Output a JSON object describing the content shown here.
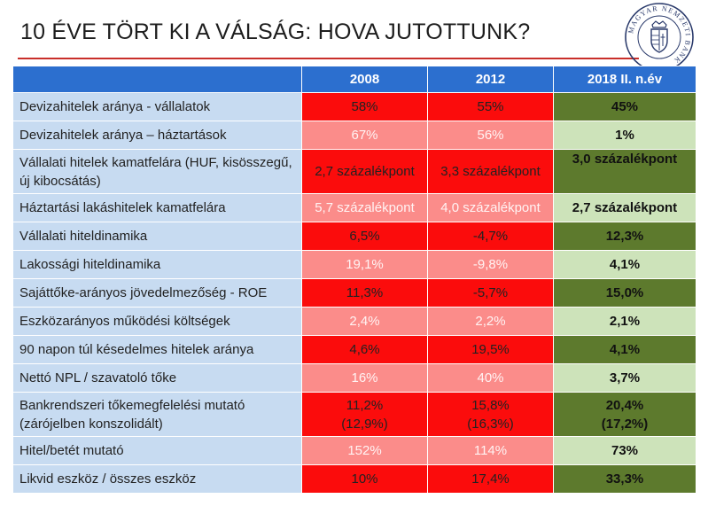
{
  "title": "10 ÉVE TÖRT KI A VÁLSÁG: HOVA JUTOTTUNK?",
  "logo": {
    "text": "MAGYAR NEMZETI BANK",
    "icon": "mnb-seal-icon"
  },
  "colors": {
    "header": "#2c6fcf",
    "label_bg": "#c7dbf1",
    "dark_red": "#fb0c0c",
    "light_red": "#fb8c8a",
    "dark_green": "#5d7a2d",
    "light_green": "#cde3ba"
  },
  "table": {
    "headers": [
      "",
      "2008",
      "2012",
      "2018 II. n.év"
    ],
    "rows": [
      {
        "label": "Devizahitelek aránya - vállalatok",
        "v2008": "58%",
        "v2012": "55%",
        "v2018": "45%"
      },
      {
        "label": "Devizahitelek aránya – háztartások",
        "v2008": "67%",
        "v2012": "56%",
        "v2018": "1%"
      },
      {
        "label": "Vállalati hitelek kamatfelára (HUF, kisösszegű, új kibocsátás)",
        "v2008": "2,7 százalékpont",
        "v2012": "3,3 százalékpont",
        "v2018": "3,0 százalékpont"
      },
      {
        "label": "Háztartási lakáshitelek kamatfelára",
        "v2008": "5,7 százalékpont",
        "v2012": "4,0 százalékpont",
        "v2018": "2,7 százalékpont"
      },
      {
        "label": "Vállalati hiteldinamika",
        "v2008": "6,5%",
        "v2012": "-4,7%",
        "v2018": "12,3%"
      },
      {
        "label": "Lakossági hiteldinamika",
        "v2008": "19,1%",
        "v2012": "-9,8%",
        "v2018": "4,1%"
      },
      {
        "label": "Sajáttőke-arányos jövedelmezőség - ROE",
        "v2008": "11,3%",
        "v2012": "-5,7%",
        "v2018": "15,0%"
      },
      {
        "label": "Eszközarányos működési költségek",
        "v2008": "2,4%",
        "v2012": "2,2%",
        "v2018": "2,1%"
      },
      {
        "label": "90 napon túl késedelmes hitelek aránya",
        "v2008": "4,6%",
        "v2012": "19,5%",
        "v2018": "4,1%"
      },
      {
        "label": "Nettó NPL / szavatoló tőke",
        "v2008": "16%",
        "v2012": "40%",
        "v2018": "3,7%"
      },
      {
        "label": "Bankrendszeri tőkemegfelelési mutató (zárójelben konszolidált)",
        "v2008": "11,2%",
        "v2008b": "(12,9%)",
        "v2012": "15,8%",
        "v2012b": "(16,3%)",
        "v2018": "20,4%",
        "v2018b": "(17,2%)"
      },
      {
        "label": "Hitel/betét mutató",
        "v2008": "152%",
        "v2012": "114%",
        "v2018": "73%"
      },
      {
        "label": "Likvid eszköz / összes eszköz",
        "v2008": "10%",
        "v2012": "17,4%",
        "v2018": "33,3%"
      }
    ]
  }
}
